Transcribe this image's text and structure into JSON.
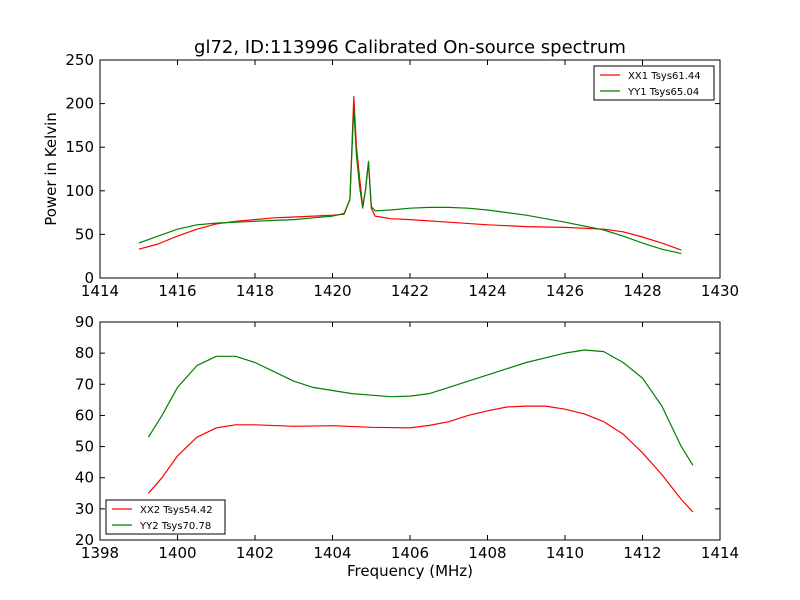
{
  "figure": {
    "title": "gl72, ID:113996 Calibrated On-source spectrum",
    "ylabel": "Power in Kelvin",
    "xlabel": "Frequency (MHz)"
  },
  "chart_data": [
    {
      "type": "line",
      "title": "gl72, ID:113996 Calibrated On-source spectrum",
      "xlabel": "",
      "ylabel": "Power in Kelvin",
      "xlim": [
        1414,
        1430
      ],
      "ylim": [
        0,
        250
      ],
      "xticks": [
        "1414",
        "1416",
        "1418",
        "1420",
        "1422",
        "1424",
        "1426",
        "1428",
        "1430"
      ],
      "yticks": [
        "0",
        "50",
        "100",
        "150",
        "200",
        "250"
      ],
      "grid": false,
      "legend_position": "top-right",
      "series": [
        {
          "name": "XX1 Tsys61.44",
          "color": "#ff0000",
          "points": [
            [
              1415.0,
              33
            ],
            [
              1415.5,
              39
            ],
            [
              1416.0,
              48
            ],
            [
              1416.5,
              56
            ],
            [
              1417.0,
              62
            ],
            [
              1417.5,
              65
            ],
            [
              1418.0,
              67
            ],
            [
              1418.5,
              69
            ],
            [
              1419.0,
              70
            ],
            [
              1419.5,
              71
            ],
            [
              1420.0,
              72
            ],
            [
              1420.3,
              73
            ],
            [
              1420.45,
              90
            ],
            [
              1420.55,
              208
            ],
            [
              1420.62,
              150
            ],
            [
              1420.7,
              115
            ],
            [
              1420.78,
              82
            ],
            [
              1420.85,
              100
            ],
            [
              1420.93,
              132
            ],
            [
              1421.0,
              80
            ],
            [
              1421.1,
              71
            ],
            [
              1421.5,
              68
            ],
            [
              1422.0,
              67
            ],
            [
              1423.0,
              64
            ],
            [
              1424.0,
              61
            ],
            [
              1425.0,
              59
            ],
            [
              1426.0,
              58
            ],
            [
              1427.0,
              56
            ],
            [
              1427.5,
              53
            ],
            [
              1428.0,
              47
            ],
            [
              1428.5,
              40
            ],
            [
              1429.0,
              32
            ]
          ]
        },
        {
          "name": "YY1 Tsys65.04",
          "color": "#008000",
          "points": [
            [
              1415.0,
              40
            ],
            [
              1415.5,
              48
            ],
            [
              1416.0,
              56
            ],
            [
              1416.5,
              61
            ],
            [
              1417.0,
              63
            ],
            [
              1417.5,
              64
            ],
            [
              1418.0,
              65
            ],
            [
              1418.5,
              66
            ],
            [
              1419.0,
              67
            ],
            [
              1419.5,
              69
            ],
            [
              1420.0,
              71
            ],
            [
              1420.3,
              74
            ],
            [
              1420.45,
              90
            ],
            [
              1420.55,
              195
            ],
            [
              1420.62,
              140
            ],
            [
              1420.7,
              105
            ],
            [
              1420.78,
              80
            ],
            [
              1420.85,
              100
            ],
            [
              1420.93,
              134
            ],
            [
              1421.0,
              82
            ],
            [
              1421.1,
              77
            ],
            [
              1421.5,
              78
            ],
            [
              1422.0,
              80
            ],
            [
              1422.5,
              81
            ],
            [
              1423.0,
              81
            ],
            [
              1423.5,
              80
            ],
            [
              1424.0,
              78
            ],
            [
              1425.0,
              72
            ],
            [
              1426.0,
              64
            ],
            [
              1427.0,
              55
            ],
            [
              1427.5,
              48
            ],
            [
              1428.0,
              40
            ],
            [
              1428.5,
              33
            ],
            [
              1429.0,
              28
            ]
          ]
        }
      ]
    },
    {
      "type": "line",
      "title": "",
      "xlabel": "Frequency (MHz)",
      "ylabel": "",
      "xlim": [
        1398,
        1414
      ],
      "ylim": [
        20,
        90
      ],
      "xticks": [
        "1398",
        "1400",
        "1402",
        "1404",
        "1406",
        "1408",
        "1410",
        "1412",
        "1414"
      ],
      "yticks": [
        "20",
        "30",
        "40",
        "50",
        "60",
        "70",
        "80",
        "90"
      ],
      "grid": false,
      "legend_position": "bottom-left",
      "series": [
        {
          "name": "XX2 Tsys54.42",
          "color": "#ff0000",
          "points": [
            [
              1399.25,
              35
            ],
            [
              1399.6,
              40
            ],
            [
              1400.0,
              47
            ],
            [
              1400.5,
              53
            ],
            [
              1401.0,
              56
            ],
            [
              1401.5,
              57
            ],
            [
              1402.0,
              57
            ],
            [
              1403.0,
              56.5
            ],
            [
              1404.0,
              56.7
            ],
            [
              1405.0,
              56.2
            ],
            [
              1406.0,
              56
            ],
            [
              1406.5,
              56.8
            ],
            [
              1407.0,
              58
            ],
            [
              1407.5,
              60
            ],
            [
              1408.0,
              61.5
            ],
            [
              1408.5,
              62.7
            ],
            [
              1409.0,
              63
            ],
            [
              1409.5,
              63
            ],
            [
              1410.0,
              62
            ],
            [
              1410.5,
              60.5
            ],
            [
              1411.0,
              58
            ],
            [
              1411.5,
              54
            ],
            [
              1412.0,
              48
            ],
            [
              1412.5,
              41
            ],
            [
              1413.0,
              33
            ],
            [
              1413.3,
              29
            ]
          ]
        },
        {
          "name": "YY2 Tsys70.78",
          "color": "#008000",
          "points": [
            [
              1399.25,
              53
            ],
            [
              1399.6,
              60
            ],
            [
              1400.0,
              69
            ],
            [
              1400.5,
              76
            ],
            [
              1401.0,
              79
            ],
            [
              1401.5,
              79
            ],
            [
              1402.0,
              77
            ],
            [
              1402.5,
              74
            ],
            [
              1403.0,
              71
            ],
            [
              1403.5,
              69
            ],
            [
              1404.0,
              68
            ],
            [
              1404.5,
              67
            ],
            [
              1405.0,
              66.5
            ],
            [
              1405.5,
              66
            ],
            [
              1406.0,
              66.2
            ],
            [
              1406.5,
              67
            ],
            [
              1407.0,
              69
            ],
            [
              1407.5,
              71
            ],
            [
              1408.0,
              73
            ],
            [
              1408.5,
              75
            ],
            [
              1409.0,
              77
            ],
            [
              1409.5,
              78.5
            ],
            [
              1410.0,
              80
            ],
            [
              1410.5,
              81
            ],
            [
              1411.0,
              80.5
            ],
            [
              1411.5,
              77
            ],
            [
              1412.0,
              72
            ],
            [
              1412.5,
              63
            ],
            [
              1413.0,
              50
            ],
            [
              1413.3,
              44
            ]
          ]
        }
      ]
    }
  ]
}
